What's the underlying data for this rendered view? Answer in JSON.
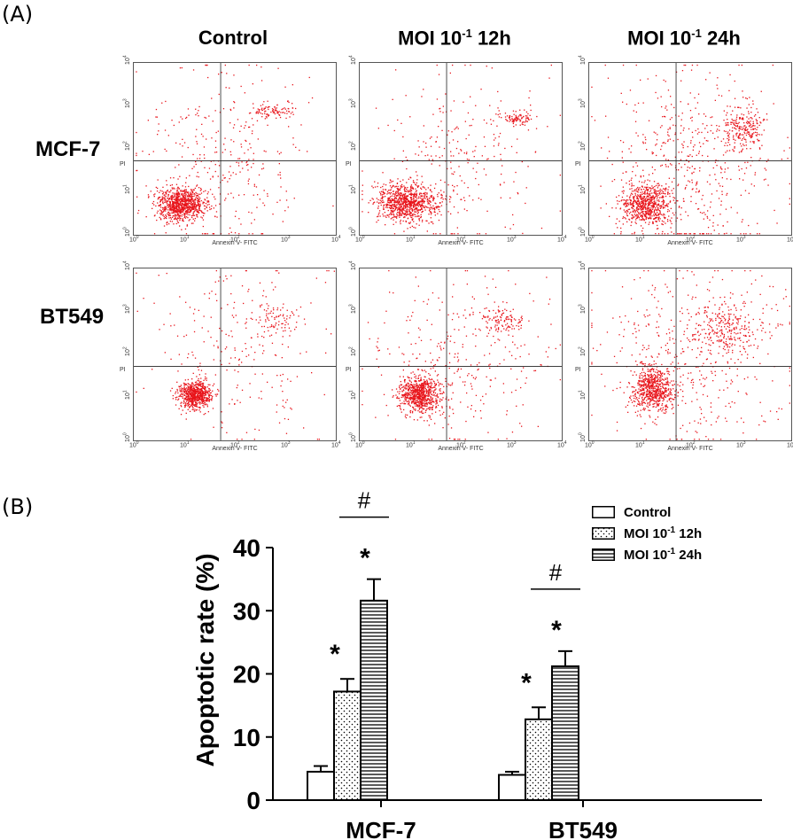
{
  "panel_a_label": "(A)",
  "panel_b_label": "(B)",
  "flow": {
    "columns": [
      {
        "base": "Control",
        "sup": "",
        "tail": ""
      },
      {
        "base": "MOI 10",
        "sup": "-1",
        "tail": " 12h"
      },
      {
        "base": "MOI 10",
        "sup": "-1",
        "tail": " 24h"
      }
    ],
    "rows": [
      "MCF-7",
      "BT549"
    ],
    "x_axis_label": "Annexin V- FITC",
    "y_axis_label": "PI",
    "tick_base": "10",
    "tick_exponents": [
      "0",
      "1",
      "2",
      "3",
      "4"
    ],
    "dot_color": "#e8141b"
  },
  "legend": [
    {
      "base": "Control",
      "sup": "",
      "tail": "",
      "pattern": "white"
    },
    {
      "base": "MOI 10",
      "sup": "-1",
      "tail": " 12h",
      "pattern": "dots"
    },
    {
      "base": "MOI 10",
      "sup": "-1",
      "tail": " 24h",
      "pattern": "hlines"
    }
  ],
  "chart_data": {
    "type": "bar",
    "title": "",
    "xlabel": "",
    "ylabel": "Apoptotic rate (%)",
    "ylim": [
      0,
      40
    ],
    "yticks": [
      "0",
      "10",
      "20",
      "30",
      "40"
    ],
    "categories": [
      "MCF-7",
      "BT549"
    ],
    "series": [
      {
        "name": "Control",
        "values": [
          4.5,
          4.0
        ],
        "errors": [
          0.9,
          0.5
        ],
        "marks": [
          "",
          ""
        ]
      },
      {
        "name": "MOI 10-1 12h",
        "values": [
          17.2,
          12.8
        ],
        "errors": [
          2.0,
          1.9
        ],
        "marks": [
          "*",
          "*"
        ]
      },
      {
        "name": "MOI 10-1 24h",
        "values": [
          31.6,
          21.2
        ],
        "errors": [
          3.4,
          2.4
        ],
        "marks": [
          "*",
          "*"
        ]
      }
    ],
    "comparison_markers": [
      {
        "category": "MCF-7",
        "between": [
          1,
          2
        ],
        "label": "#"
      },
      {
        "category": "BT549",
        "between": [
          1,
          2
        ],
        "label": "#"
      }
    ]
  }
}
